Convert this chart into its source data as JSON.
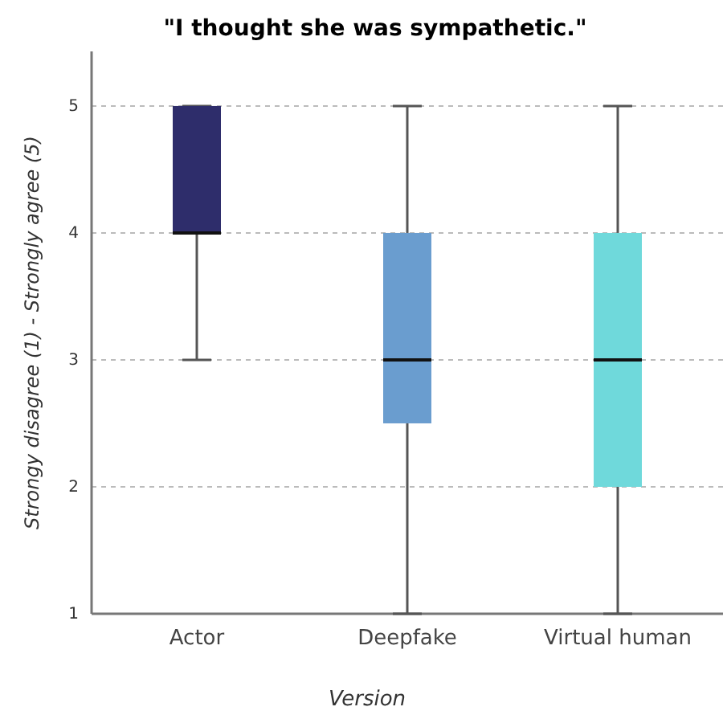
{
  "chart_data": {
    "type": "box",
    "title": "\"I thought she was sympathetic.\"",
    "xlabel": "Version",
    "ylabel": "Strongy disagree (1) - Strongly agree (5)",
    "categories": [
      "Actor",
      "Deepfake",
      "Virtual human"
    ],
    "boxes": [
      {
        "low": 3,
        "q1": 4,
        "median": 4,
        "q3": 5,
        "high": 5
      },
      {
        "low": 1,
        "q1": 2.5,
        "median": 3,
        "q3": 4,
        "high": 5
      },
      {
        "low": 1,
        "q1": 2,
        "median": 3,
        "q3": 4,
        "high": 5
      }
    ],
    "colors": [
      "#2e2d6b",
      "#6a9dcf",
      "#6fd9db"
    ],
    "ylim": [
      1,
      5.43
    ],
    "yticks": [
      1,
      2,
      3,
      4,
      5
    ],
    "grid": "y"
  }
}
